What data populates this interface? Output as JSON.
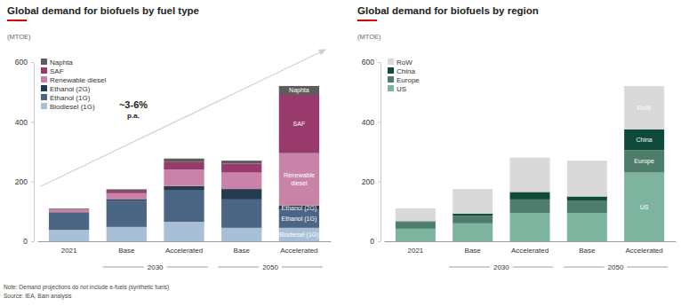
{
  "chart_data": [
    {
      "type": "bar",
      "stacked": true,
      "grid": false,
      "legend": "top-left",
      "title": "Global demand for biofuels by fuel type",
      "subtitle": "(MTOE)",
      "annotation": "~3-6% p.a.",
      "categories": [
        "2021",
        "Base",
        "Accelerated",
        "Base",
        "Accelerated"
      ],
      "groups": [
        null,
        "2030",
        "2030",
        "2050",
        "2050"
      ],
      "ylim": [
        0,
        600
      ],
      "yticks": [
        0,
        200,
        400,
        600
      ],
      "series": [
        {
          "name": "Biodiesel (1G)",
          "color": "#a9bfd8",
          "values": [
            38,
            48,
            65,
            45,
            45
          ]
        },
        {
          "name": "Ethanol (1G)",
          "color": "#4b6684",
          "values": [
            57,
            88,
            105,
            95,
            60
          ]
        },
        {
          "name": "Ethanol (2G)",
          "color": "#263a50",
          "values": [
            2,
            5,
            15,
            35,
            15
          ]
        },
        {
          "name": "Renewable diesel",
          "color": "#c983a9",
          "values": [
            10,
            20,
            55,
            55,
            175
          ]
        },
        {
          "name": "SAF",
          "color": "#993a6c",
          "values": [
            1,
            8,
            25,
            30,
            195
          ]
        },
        {
          "name": "Naphta",
          "color": "#5c5c5c",
          "values": [
            2,
            5,
            12,
            10,
            30
          ]
        }
      ]
    },
    {
      "type": "bar",
      "stacked": true,
      "grid": false,
      "legend": "top-left",
      "title": "Global demand for biofuels by region",
      "subtitle": "(MTOE)",
      "categories": [
        "2021",
        "Base",
        "Accelerated",
        "Base",
        "Accelerated"
      ],
      "groups": [
        null,
        "2030",
        "2030",
        "2050",
        "2050"
      ],
      "ylim": [
        0,
        600
      ],
      "yticks": [
        0,
        200,
        400,
        600
      ],
      "series": [
        {
          "name": "US",
          "color": "#7db49f",
          "values": [
            42,
            60,
            95,
            95,
            230
          ]
        },
        {
          "name": "Europe",
          "color": "#4f7d6b",
          "values": [
            22,
            25,
            45,
            40,
            75
          ]
        },
        {
          "name": "China",
          "color": "#0f4a3a",
          "values": [
            3,
            7,
            25,
            15,
            70
          ]
        },
        {
          "name": "RoW",
          "color": "#d9d9d9",
          "values": [
            43,
            83,
            115,
            120,
            145
          ]
        }
      ]
    }
  ],
  "notes": [
    "Note: Demand projections do not include e-fuels (synthetic fuels)",
    "Source: IEA, Bain analysis"
  ]
}
